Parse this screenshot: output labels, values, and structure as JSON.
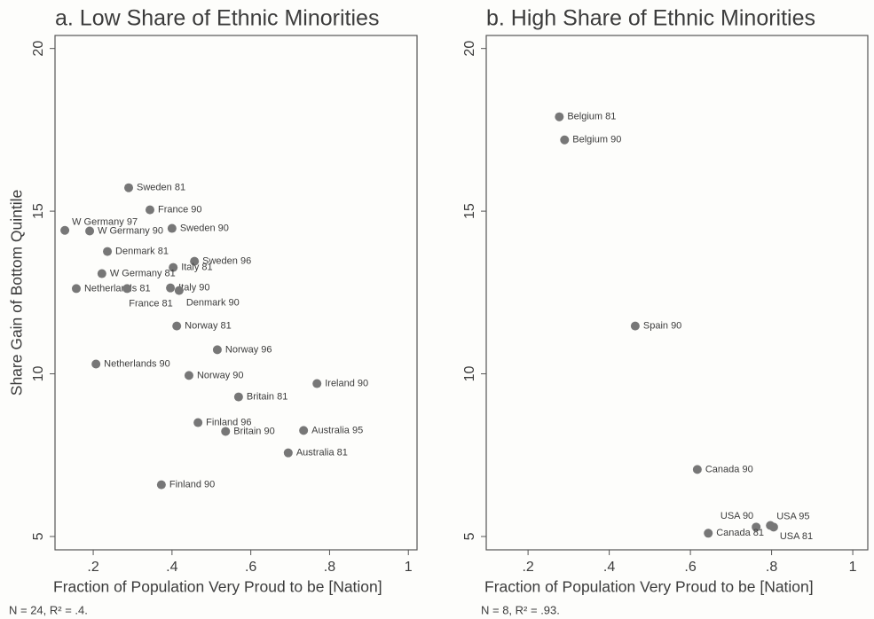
{
  "chart_data": [
    {
      "type": "scatter",
      "title": "a. Low Share of Ethnic Minorities",
      "x_label": "Fraction of Population Very Proud to be [Nation]",
      "y_label": "Share Gain of Bottom Quintile",
      "note": "N = 24, R² = .4.",
      "color": "#777777",
      "xlim": [
        0.103,
        1.022
      ],
      "ylim": [
        4.59,
        20.4
      ],
      "xticks": [
        {
          "value": 0.2,
          "label": ".2"
        },
        {
          "value": 0.4,
          "label": ".4"
        },
        {
          "value": 0.6,
          "label": ".6"
        },
        {
          "value": 0.8,
          "label": ".8"
        },
        1
      ],
      "yticks": [
        5,
        10,
        15,
        20
      ],
      "labels": [
        "Sweden 81",
        "France 90",
        "W Germany 97",
        "W Germany 90",
        "Sweden 90",
        "Denmark 81",
        "Sweden 96",
        "Italy 81",
        "W Germany 81",
        "Netherlands 81",
        "France 81",
        "Italy 90",
        "Denmark 90",
        "Norway 81",
        "Norway 96",
        "Netherlands 90",
        "Norway 90",
        "Ireland 90",
        "Britain 81",
        "Finland 96",
        "Britain 90",
        "Australia 95",
        "Australia 81",
        "Finland 90"
      ],
      "x": [
        0.29,
        0.344,
        0.128,
        0.191,
        0.4,
        0.236,
        0.457,
        0.403,
        0.222,
        0.157,
        0.286,
        0.396,
        0.418,
        0.412,
        0.515,
        0.207,
        0.443,
        0.768,
        0.569,
        0.466,
        0.536,
        0.734,
        0.695,
        0.373
      ],
      "values": [
        15.72,
        15.04,
        14.41,
        14.39,
        14.47,
        13.76,
        13.46,
        13.27,
        13.08,
        12.62,
        12.62,
        12.64,
        12.56,
        11.47,
        10.74,
        10.3,
        9.95,
        9.7,
        9.29,
        8.5,
        8.23,
        8.26,
        7.57,
        6.59
      ]
    },
    {
      "type": "scatter",
      "title": "b. High Share of Ethnic Minorities",
      "x_label": "Fraction of Population Very Proud to be [Nation]",
      "note": "N = 8, R² = .93.",
      "color": "#777777",
      "xlim": [
        0.097,
        1.037
      ],
      "ylim": [
        4.59,
        20.4
      ],
      "xticks": [
        {
          "value": 0.2,
          "label": ".2"
        },
        {
          "value": 0.4,
          "label": ".4"
        },
        {
          "value": 0.6,
          "label": ".6"
        },
        {
          "value": 0.8,
          "label": ".8"
        },
        1
      ],
      "yticks": [
        5,
        10,
        15,
        20
      ],
      "labels": [
        "Belgium 81",
        "Belgium 90",
        "Spain 90",
        "Canada 90",
        "USA 90",
        "USA 95",
        "USA 81",
        "Canada 81"
      ],
      "x": [
        0.277,
        0.29,
        0.464,
        0.617,
        0.762,
        0.797,
        0.805,
        0.644
      ],
      "values": [
        17.9,
        17.19,
        11.47,
        7.06,
        5.29,
        5.34,
        5.29,
        5.1
      ]
    }
  ]
}
